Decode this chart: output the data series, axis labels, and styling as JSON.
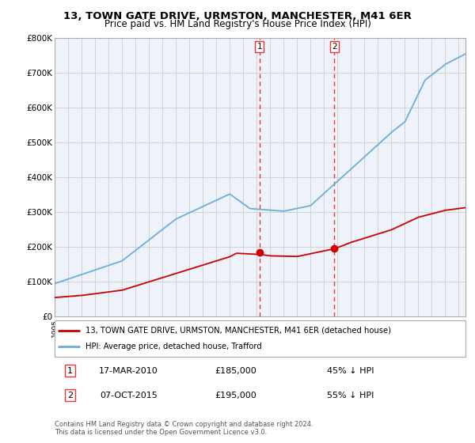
{
  "title": "13, TOWN GATE DRIVE, URMSTON, MANCHESTER, M41 6ER",
  "subtitle": "Price paid vs. HM Land Registry's House Price Index (HPI)",
  "legend_line1": "13, TOWN GATE DRIVE, URMSTON, MANCHESTER, M41 6ER (detached house)",
  "legend_line2": "HPI: Average price, detached house, Trafford",
  "transactions": [
    {
      "num": 1,
      "date": "17-MAR-2010",
      "price": "£185,000",
      "hpi": "45% ↓ HPI",
      "year": 2010.2
    },
    {
      "num": 2,
      "date": "07-OCT-2015",
      "price": "£195,000",
      "hpi": "55% ↓ HPI",
      "year": 2015.77
    }
  ],
  "footer1": "Contains HM Land Registry data © Crown copyright and database right 2024.",
  "footer2": "This data is licensed under the Open Government Licence v3.0.",
  "ylim": [
    0,
    800000
  ],
  "yticks": [
    0,
    100000,
    200000,
    300000,
    400000,
    500000,
    600000,
    700000,
    800000
  ],
  "ytick_labels": [
    "£0",
    "£100K",
    "£200K",
    "£300K",
    "£400K",
    "£500K",
    "£600K",
    "£700K",
    "£800K"
  ],
  "hpi_color": "#6baed6",
  "property_color": "#cc0000",
  "vline_color": "#ee3333",
  "plot_bg_color": "#eef2fa",
  "grid_color": "#cccccc",
  "xlim_min": 1995,
  "xlim_max": 2025.5
}
